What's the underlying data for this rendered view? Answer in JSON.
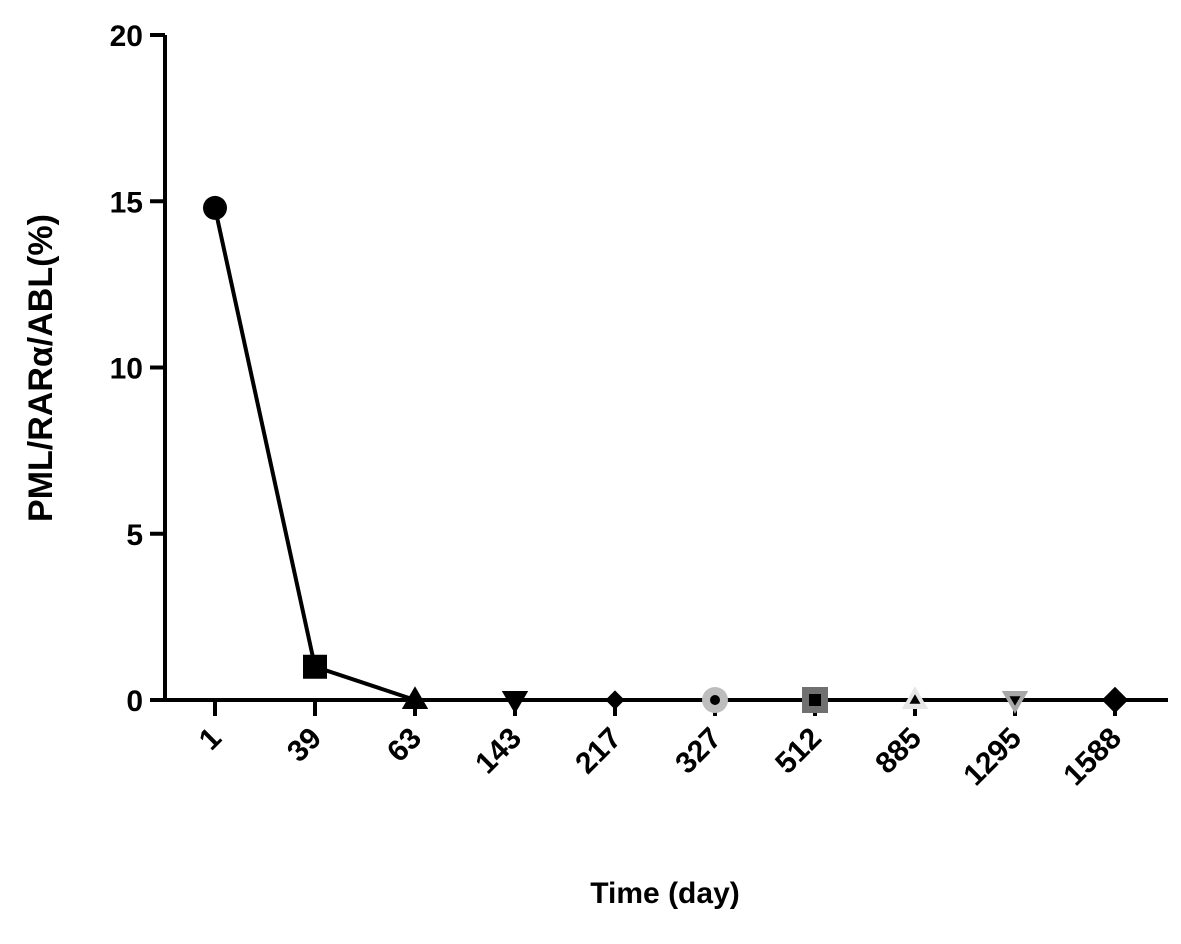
{
  "chart_data": {
    "type": "line",
    "xlabel": "Time (day)",
    "ylabel": "PML/RARα/ABL(%)",
    "categories": [
      "1",
      "39",
      "63",
      "143",
      "217",
      "327",
      "512",
      "885",
      "1295",
      "1588"
    ],
    "values": [
      14.8,
      1.0,
      0,
      0,
      0,
      0,
      0,
      0,
      0,
      0
    ],
    "ylim": [
      0,
      20
    ],
    "yticks": [
      0,
      5,
      10,
      15,
      20
    ],
    "grid": false,
    "markers": [
      {
        "shape": "circle",
        "color": "#000000"
      },
      {
        "shape": "square",
        "color": "#000000"
      },
      {
        "shape": "triangle-up",
        "color": "#000000"
      },
      {
        "shape": "triangle-down",
        "color": "#000000"
      },
      {
        "shape": "diamond",
        "color": "#000000"
      },
      {
        "shape": "circle",
        "color": "#bdbdbd",
        "inner": "#000000"
      },
      {
        "shape": "square",
        "color": "#707070",
        "inner": "#000000"
      },
      {
        "shape": "triangle-up",
        "color": "#e6e6e6",
        "inner": "#000000"
      },
      {
        "shape": "triangle-down",
        "color": "#a8a8a8",
        "inner": "#000000"
      },
      {
        "shape": "diamond",
        "color": "#000000"
      }
    ],
    "line_color": "#000000",
    "line_connects_first_n": 3
  }
}
